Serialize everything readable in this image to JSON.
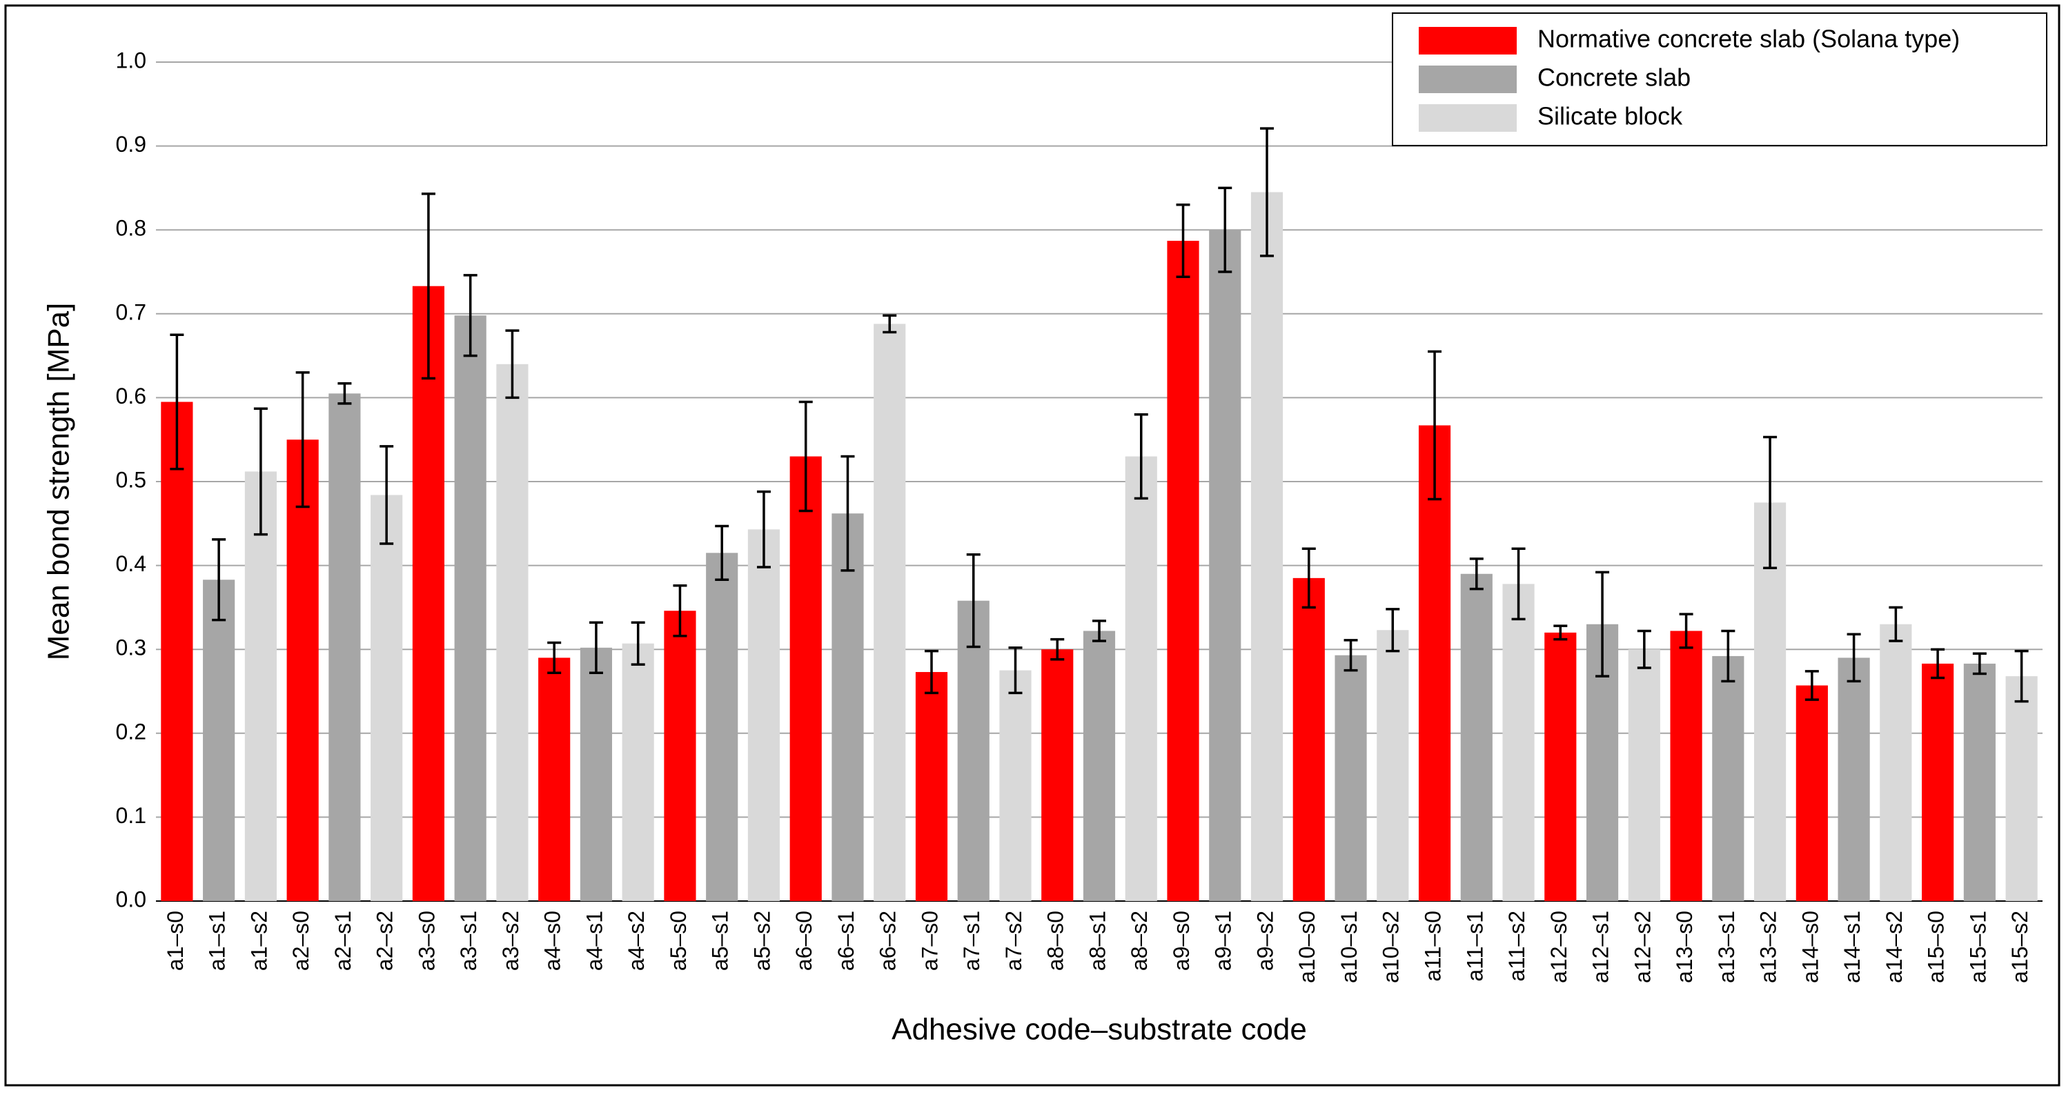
{
  "chart_data": {
    "type": "bar",
    "x_label": "Adhesive code–substrate code",
    "y_label": "Mean bond strength [MPa]",
    "categories": [
      "a1–s0",
      "a1–s1",
      "a1–s2",
      "a2–s0",
      "a2–s1",
      "a2–s2",
      "a3–s0",
      "a3–s1",
      "a3–s2",
      "a4–s0",
      "a4–s1",
      "a4–s2",
      "a5–s0",
      "a5–s1",
      "a5–s2",
      "a6–s0",
      "a6–s1",
      "a6–s2",
      "a7–s0",
      "a7–s1",
      "a7–s2",
      "a8–s0",
      "a8–s1",
      "a8–s2",
      "a9–s0",
      "a9–s1",
      "a9–s2",
      "a10–s0",
      "a10–s1",
      "a10–s2",
      "a11–s0",
      "a11–s1",
      "a11–s2",
      "a12–s0",
      "a12–s1",
      "a12–s2",
      "a13–s0",
      "a13–s1",
      "a13–s2",
      "a14–s0",
      "a14–s1",
      "a14–s2",
      "a15–s0",
      "a15–s1",
      "a15–s2"
    ],
    "series": [
      {
        "name": "Normative concrete slab (Solana type)",
        "color": "#ff0000",
        "values": [
          0.595,
          null,
          null,
          0.55,
          null,
          null,
          0.733,
          null,
          null,
          0.29,
          null,
          null,
          0.346,
          null,
          null,
          0.53,
          null,
          null,
          0.273,
          null,
          null,
          0.3,
          null,
          null,
          0.787,
          null,
          null,
          0.385,
          null,
          null,
          0.567,
          null,
          null,
          0.32,
          null,
          null,
          0.322,
          null,
          null,
          0.257,
          null,
          null,
          0.283,
          null,
          null
        ],
        "errors": [
          0.08,
          null,
          null,
          0.08,
          null,
          null,
          0.11,
          null,
          null,
          0.018,
          null,
          null,
          0.03,
          null,
          null,
          0.065,
          null,
          null,
          0.025,
          null,
          null,
          0.012,
          null,
          null,
          0.043,
          null,
          null,
          0.035,
          null,
          null,
          0.088,
          null,
          null,
          0.008,
          null,
          null,
          0.02,
          null,
          null,
          0.017,
          null,
          null,
          0.017,
          null,
          null
        ]
      },
      {
        "name": "Concrete slab",
        "color": "#a6a6a6",
        "values": [
          null,
          0.383,
          null,
          null,
          0.605,
          null,
          null,
          0.698,
          null,
          null,
          0.302,
          null,
          null,
          0.415,
          null,
          null,
          0.462,
          null,
          null,
          0.358,
          null,
          null,
          0.322,
          null,
          null,
          0.8,
          null,
          null,
          0.293,
          null,
          null,
          0.39,
          null,
          null,
          0.33,
          null,
          null,
          0.292,
          null,
          null,
          0.29,
          null,
          null,
          0.283,
          null
        ],
        "errors": [
          null,
          0.048,
          null,
          null,
          0.012,
          null,
          null,
          0.048,
          null,
          null,
          0.03,
          null,
          null,
          0.032,
          null,
          null,
          0.068,
          null,
          null,
          0.055,
          null,
          null,
          0.012,
          null,
          null,
          0.05,
          null,
          null,
          0.018,
          null,
          null,
          0.018,
          null,
          null,
          0.062,
          null,
          null,
          0.03,
          null,
          null,
          0.028,
          null,
          null,
          0.012,
          null
        ]
      },
      {
        "name": "Silicate block",
        "color": "#d9d9d9",
        "values": [
          null,
          null,
          0.512,
          null,
          null,
          0.484,
          null,
          null,
          0.64,
          null,
          null,
          0.307,
          null,
          null,
          0.443,
          null,
          null,
          0.688,
          null,
          null,
          0.275,
          null,
          null,
          0.53,
          null,
          null,
          0.845,
          null,
          null,
          0.323,
          null,
          null,
          0.378,
          null,
          null,
          0.3,
          null,
          null,
          0.475,
          null,
          null,
          0.33,
          null,
          null,
          0.268
        ],
        "errors": [
          null,
          null,
          0.075,
          null,
          null,
          0.058,
          null,
          null,
          0.04,
          null,
          null,
          0.025,
          null,
          null,
          0.045,
          null,
          null,
          0.01,
          null,
          null,
          0.027,
          null,
          null,
          0.05,
          null,
          null,
          0.076,
          null,
          null,
          0.025,
          null,
          null,
          0.042,
          null,
          null,
          0.022,
          null,
          null,
          0.078,
          null,
          null,
          0.02,
          null,
          null,
          0.03
        ]
      }
    ],
    "ylim": [
      0,
      1.0
    ],
    "yticks": [
      {
        "value": 0,
        "label": "0.0"
      },
      {
        "value": 0.1,
        "label": "0.1"
      },
      {
        "value": 0.2,
        "label": "0.2"
      },
      {
        "value": 0.3,
        "label": "0.3"
      },
      {
        "value": 0.4,
        "label": "0.4"
      },
      {
        "value": 0.5,
        "label": "0.5"
      },
      {
        "value": 0.6,
        "label": "0.6"
      },
      {
        "value": 0.7,
        "label": "0.7"
      },
      {
        "value": 0.8,
        "label": "0.8"
      },
      {
        "value": 0.9,
        "label": "0.9"
      },
      {
        "value": 1.0,
        "label": "1.0"
      }
    ],
    "grid": true,
    "legend": "upper right"
  }
}
